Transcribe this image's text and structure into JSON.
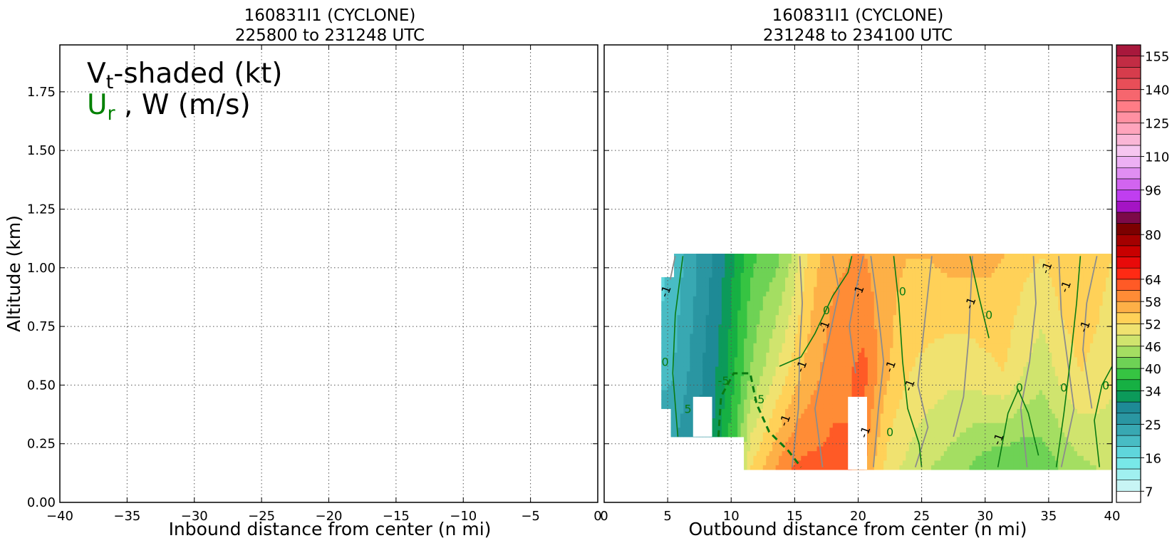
{
  "chart_data": [
    {
      "type": "contour",
      "title_line1": "160831I1 (CYCLONE)",
      "title_line2": "225800 to 231248 UTC",
      "xlabel": "Inbound distance from center (n mi)",
      "ylabel": "Altitude (km)",
      "xlim": [
        -40,
        0
      ],
      "ylim": [
        0,
        1.95
      ],
      "xticks": [
        -40,
        -35,
        -30,
        -25,
        -20,
        -15,
        -10,
        -5,
        0
      ],
      "xtick_labels": [
        "−40",
        "−35",
        "−30",
        "−25",
        "−20",
        "−15",
        "−10",
        "−5",
        "0"
      ],
      "yticks": [
        0.0,
        0.25,
        0.5,
        0.75,
        1.0,
        1.25,
        1.5,
        1.75
      ],
      "ytick_labels": [
        "0.00",
        "0.25",
        "0.50",
        "0.75",
        "1.00",
        "1.25",
        "1.50",
        "1.75"
      ],
      "grid": true,
      "legend": {
        "line1_main": "V",
        "line1_sub": "t",
        "line1_rest": "-shaded (kt)",
        "line2_main": "U",
        "line2_sub": "r",
        "line2_rest": " , W (m/s)",
        "line2_color": "#008000",
        "placement": "top-left"
      },
      "has_data": false
    },
    {
      "type": "contour",
      "title_line1": "160831I1 (CYCLONE)",
      "title_line2": "231248 to 234100 UTC",
      "xlabel": "Outbound distance from center (n mi)",
      "xlim": [
        0,
        40
      ],
      "ylim": [
        0,
        1.95
      ],
      "xticks": [
        0,
        5,
        10,
        15,
        20,
        25,
        30,
        35,
        40
      ],
      "xtick_labels": [
        "0",
        "5",
        "10",
        "15",
        "20",
        "25",
        "30",
        "35",
        "40"
      ],
      "grid": true,
      "has_data": true,
      "shaded_field": "Vt (kt)",
      "vt_profile": [
        {
          "x": 4.5,
          "low": 30,
          "mid": 20,
          "top": 18
        },
        {
          "x": 5.5,
          "low": 26,
          "mid": 22,
          "top": 20
        },
        {
          "x": 7,
          "low": 28,
          "mid": 26,
          "top": 24
        },
        {
          "x": 8.5,
          "low": 31,
          "mid": 30,
          "top": 28
        },
        {
          "x": 9.5,
          "low": 37,
          "mid": 33,
          "top": 31
        },
        {
          "x": 10.5,
          "low": 42,
          "mid": 38,
          "top": 35
        },
        {
          "x": 11.5,
          "low": 52,
          "mid": 43,
          "top": 39
        },
        {
          "x": 12.5,
          "low": 55,
          "mid": 46,
          "top": 41
        },
        {
          "x": 13.5,
          "low": 58,
          "mid": 49,
          "top": 42
        },
        {
          "x": 14.5,
          "low": 61,
          "mid": 52,
          "top": 45
        },
        {
          "x": 15.5,
          "low": 62,
          "mid": 55,
          "top": 50
        },
        {
          "x": 16.5,
          "low": 62,
          "mid": 57,
          "top": 54
        },
        {
          "x": 18,
          "low": 62,
          "mid": 60,
          "top": 57
        },
        {
          "x": 19.5,
          "low": 61,
          "mid": 61,
          "top": 58
        },
        {
          "x": 20.5,
          "low": 58,
          "mid": 62,
          "top": 58
        },
        {
          "x": 21.5,
          "low": 54,
          "mid": 58,
          "top": 57
        },
        {
          "x": 22.5,
          "low": 50,
          "mid": 55,
          "top": 56
        },
        {
          "x": 24,
          "low": 48,
          "mid": 52,
          "top": 55
        },
        {
          "x": 25.5,
          "low": 46,
          "mid": 51,
          "top": 55
        },
        {
          "x": 27,
          "low": 45,
          "mid": 50,
          "top": 56
        },
        {
          "x": 28.5,
          "low": 43,
          "mid": 50,
          "top": 56
        },
        {
          "x": 30,
          "low": 41,
          "mid": 51,
          "top": 56
        },
        {
          "x": 31.5,
          "low": 40,
          "mid": 52,
          "top": 55
        },
        {
          "x": 33,
          "low": 40,
          "mid": 49,
          "top": 53
        },
        {
          "x": 34.5,
          "low": 41,
          "mid": 47,
          "top": 52
        },
        {
          "x": 36,
          "low": 43,
          "mid": 50,
          "top": 54
        },
        {
          "x": 37.5,
          "low": 45,
          "mid": 52,
          "top": 55
        },
        {
          "x": 39,
          "low": 46,
          "mid": 51,
          "top": 53
        },
        {
          "x": 40,
          "low": 46,
          "mid": 50,
          "top": 52
        }
      ],
      "data_gaps": [
        {
          "x0": 7,
          "x1": 8.5,
          "y0": 0.28,
          "y1": 0.45
        },
        {
          "x0": 19.2,
          "x1": 20.7,
          "y0": 0.14,
          "y1": 0.45
        }
      ],
      "ur_contours": [
        {
          "level": "0",
          "style": "solid",
          "points": [
            [
              5.8,
              0.28
            ],
            [
              5.4,
              0.55
            ],
            [
              5.6,
              0.8
            ],
            [
              6.2,
              1.05
            ]
          ]
        },
        {
          "level": "-5",
          "style": "dashed",
          "points": [
            [
              9.0,
              0.28
            ],
            [
              9.2,
              0.45
            ],
            [
              10.2,
              0.55
            ],
            [
              11.5,
              0.55
            ],
            [
              12.0,
              0.42
            ],
            [
              13.0,
              0.3
            ],
            [
              14.5,
              0.22
            ],
            [
              15.5,
              0.15
            ]
          ]
        },
        {
          "level": "0",
          "style": "solid",
          "points": [
            [
              13.8,
              0.58
            ],
            [
              15.5,
              0.62
            ],
            [
              16.6,
              0.72
            ],
            [
              18.0,
              0.88
            ],
            [
              19.2,
              0.98
            ],
            [
              19.5,
              1.05
            ]
          ]
        },
        {
          "level": "0",
          "style": "solid",
          "points": [
            [
              25.0,
              0.15
            ],
            [
              24.8,
              0.25
            ],
            [
              23.9,
              0.4
            ],
            [
              23.5,
              0.6
            ],
            [
              23.2,
              0.85
            ],
            [
              22.8,
              1.05
            ]
          ]
        },
        {
          "level": "0",
          "style": "solid",
          "points": [
            [
              31.0,
              0.15
            ],
            [
              31.8,
              0.38
            ],
            [
              32.6,
              0.48
            ],
            [
              33.4,
              0.38
            ],
            [
              34.2,
              0.2
            ]
          ]
        },
        {
          "level": "0",
          "style": "solid",
          "points": [
            [
              30.3,
              0.7
            ],
            [
              29.5,
              0.88
            ],
            [
              28.8,
              1.05
            ]
          ]
        },
        {
          "level": "0",
          "style": "solid",
          "points": [
            [
              35.6,
              0.15
            ],
            [
              36.2,
              0.38
            ],
            [
              36.8,
              0.65
            ],
            [
              37.2,
              0.85
            ],
            [
              37.5,
              1.05
            ]
          ]
        },
        {
          "level": "0",
          "style": "solid",
          "points": [
            [
              39.0,
              0.15
            ],
            [
              38.6,
              0.35
            ],
            [
              39.2,
              0.5
            ],
            [
              40.0,
              0.58
            ]
          ]
        }
      ],
      "ur_labels": [
        {
          "text": "0",
          "x": 4.8,
          "y": 0.6
        },
        {
          "text": "-5",
          "x": 9.4,
          "y": 0.52
        },
        {
          "text": "-5",
          "x": 12.2,
          "y": 0.44
        },
        {
          "text": "5",
          "x": 6.6,
          "y": 0.4
        },
        {
          "text": "0",
          "x": 17.5,
          "y": 0.82
        },
        {
          "text": "0",
          "x": 23.5,
          "y": 0.9
        },
        {
          "text": "0",
          "x": 22.5,
          "y": 0.3
        },
        {
          "text": "0",
          "x": 32.7,
          "y": 0.49
        },
        {
          "text": "0",
          "x": 36.2,
          "y": 0.49
        },
        {
          "text": "0",
          "x": 39.5,
          "y": 0.5
        },
        {
          "text": "0",
          "x": 30.3,
          "y": 0.8
        }
      ],
      "w_contours": [
        {
          "points": [
            [
              5.2,
              0.95
            ],
            [
              5.6,
              1.05
            ]
          ]
        },
        {
          "points": [
            [
              14.8,
              0.15
            ],
            [
              15.3,
              0.4
            ],
            [
              15.4,
              0.65
            ],
            [
              15.6,
              0.85
            ],
            [
              15.4,
              1.05
            ]
          ]
        },
        {
          "points": [
            [
              17.2,
              0.15
            ],
            [
              16.6,
              0.4
            ],
            [
              17.3,
              0.6
            ],
            [
              18.5,
              0.9
            ],
            [
              18.0,
              1.05
            ]
          ]
        },
        {
          "points": [
            [
              19.8,
              0.55
            ],
            [
              19.3,
              0.75
            ],
            [
              19.8,
              0.9
            ],
            [
              20.4,
              1.05
            ]
          ]
        },
        {
          "points": [
            [
              21.2,
              0.15
            ],
            [
              21.6,
              0.4
            ],
            [
              22.0,
              0.6
            ],
            [
              21.5,
              0.85
            ],
            [
              21.0,
              1.05
            ]
          ]
        },
        {
          "points": [
            [
              24.5,
              0.15
            ],
            [
              25.5,
              0.32
            ],
            [
              24.7,
              0.5
            ],
            [
              25.2,
              0.75
            ],
            [
              25.8,
              1.05
            ]
          ]
        },
        {
          "points": [
            [
              27.5,
              0.28
            ],
            [
              28.3,
              0.45
            ],
            [
              28.7,
              0.7
            ],
            [
              29.0,
              1.05
            ]
          ]
        },
        {
          "points": [
            [
              33.3,
              0.15
            ],
            [
              32.8,
              0.4
            ],
            [
              33.5,
              0.6
            ],
            [
              34.0,
              0.85
            ],
            [
              33.8,
              1.05
            ]
          ]
        },
        {
          "points": [
            [
              36.0,
              0.15
            ],
            [
              37.0,
              0.4
            ],
            [
              36.5,
              0.6
            ],
            [
              36.0,
              0.8
            ],
            [
              35.8,
              1.05
            ]
          ]
        },
        {
          "points": [
            [
              38.4,
              0.4
            ],
            [
              37.7,
              0.65
            ],
            [
              38.0,
              0.85
            ],
            [
              38.8,
              1.05
            ]
          ]
        }
      ],
      "w_labels": [
        {
          "text": "-1",
          "x": 4.8,
          "y": 0.9
        },
        {
          "text": "-1",
          "x": 14.2,
          "y": 0.35
        },
        {
          "text": "-1",
          "x": 15.5,
          "y": 0.58
        },
        {
          "text": "-1",
          "x": 17.3,
          "y": 0.75
        },
        {
          "text": "-1",
          "x": 20.0,
          "y": 0.9
        },
        {
          "text": "-1",
          "x": 20.5,
          "y": 0.3
        },
        {
          "text": "-1",
          "x": 22.5,
          "y": 0.58
        },
        {
          "text": "-1",
          "x": 24.0,
          "y": 0.5
        },
        {
          "text": "-1",
          "x": 28.8,
          "y": 0.85
        },
        {
          "text": "-1",
          "x": 31.0,
          "y": 0.27
        },
        {
          "text": "-1",
          "x": 34.8,
          "y": 1.0
        },
        {
          "text": "-1",
          "x": 36.3,
          "y": 0.92
        },
        {
          "text": "-1",
          "x": 37.8,
          "y": 0.75
        }
      ]
    },
    {
      "type": "colorbar",
      "levels": [
        3,
        7,
        10,
        13,
        16,
        19,
        22,
        25,
        28,
        31,
        34,
        37,
        40,
        43,
        46,
        49,
        52,
        55,
        58,
        61,
        64,
        68,
        72,
        76,
        80,
        84,
        88,
        92,
        96,
        101,
        106,
        110,
        115,
        120,
        125,
        130,
        135,
        140,
        145,
        150,
        155,
        160
      ],
      "colors": [
        "#ffffff",
        "#c8f5f5",
        "#a0f0f0",
        "#78e8e8",
        "#5fd6dc",
        "#48bcc4",
        "#38a8b2",
        "#2a96a2",
        "#1e8a96",
        "#0c9a5a",
        "#16b043",
        "#36c442",
        "#6ed255",
        "#a4de62",
        "#d0e46e",
        "#f0e270",
        "#ffd158",
        "#fdb047",
        "#ff8c36",
        "#ff5a26",
        "#ff2a14",
        "#e80a0a",
        "#c80000",
        "#a40000",
        "#7c0000",
        "#7c0a48",
        "#a414c4",
        "#c03ef0",
        "#d264f0",
        "#e08ef2",
        "#edb0f4",
        "#f6c6f0",
        "#fab6d6",
        "#ffa4bc",
        "#ff90a2",
        "#ff7c86",
        "#f6666e",
        "#e84e58",
        "#d63c4c",
        "#c22c44",
        "#a8183c"
      ],
      "tick_labels": [
        "7",
        "16",
        "25",
        "34",
        "40",
        "46",
        "52",
        "58",
        "64",
        "80",
        "96",
        "110",
        "125",
        "140",
        "155"
      ],
      "tick_values": [
        7,
        16,
        25,
        34,
        40,
        46,
        52,
        58,
        64,
        80,
        96,
        110,
        125,
        140,
        155
      ]
    }
  ]
}
